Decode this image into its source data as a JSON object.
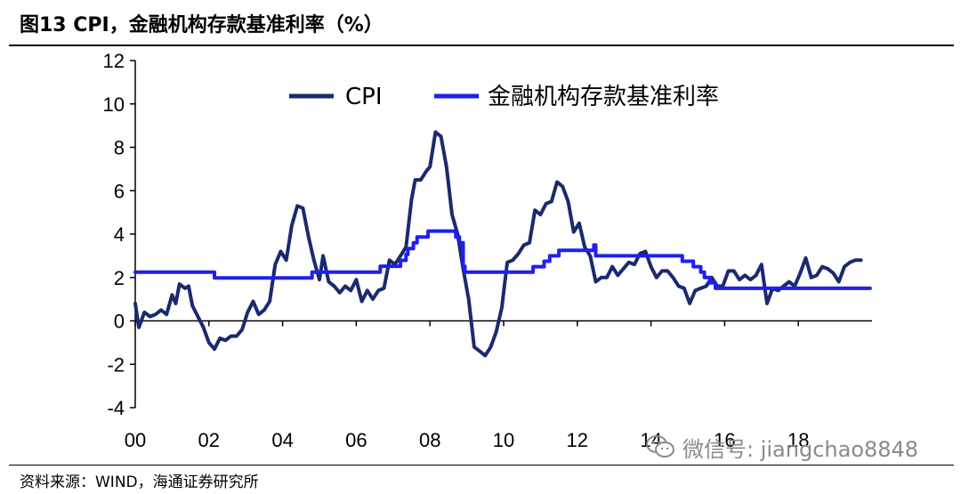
{
  "header": {
    "title": "图13 CPI，金融机构存款基准利率（%）"
  },
  "footer": {
    "source": "资料来源：WIND，海通证券研究所"
  },
  "watermark": {
    "text": "微信号: jiangchao8848",
    "icon": "wechat-icon"
  },
  "colors": {
    "cpi": "#1a2a6e",
    "rate": "#1f1fef",
    "axis": "#000000"
  },
  "chart_data": {
    "type": "line",
    "title": "",
    "xlabel": "",
    "ylabel": "",
    "xlim": [
      2000,
      2020
    ],
    "ylim": [
      -4,
      12
    ],
    "yticks": [
      -4,
      -2,
      0,
      2,
      4,
      6,
      8,
      10,
      12
    ],
    "ytick_labels": [
      "-4",
      "-2",
      "0",
      "2",
      "4",
      "6",
      "8",
      "10",
      "12"
    ],
    "xticks": [
      2000,
      2002,
      2004,
      2006,
      2008,
      2010,
      2012,
      2014,
      2016,
      2018
    ],
    "xtick_labels": [
      "00",
      "02",
      "04",
      "06",
      "08",
      "10",
      "12",
      "14",
      "16",
      "18"
    ],
    "legend_position": "top",
    "series": [
      {
        "name": "CPI",
        "x": [
          2000.0,
          2000.1,
          2000.25,
          2000.4,
          2000.55,
          2000.7,
          2000.85,
          2001.0,
          2001.1,
          2001.2,
          2001.35,
          2001.45,
          2001.55,
          2001.7,
          2001.85,
          2002.0,
          2002.15,
          2002.3,
          2002.45,
          2002.6,
          2002.75,
          2002.9,
          2003.05,
          2003.2,
          2003.35,
          2003.5,
          2003.65,
          2003.8,
          2003.95,
          2004.1,
          2004.25,
          2004.4,
          2004.55,
          2004.7,
          2004.85,
          2005.0,
          2005.1,
          2005.25,
          2005.4,
          2005.55,
          2005.7,
          2005.85,
          2006.0,
          2006.15,
          2006.3,
          2006.45,
          2006.6,
          2006.75,
          2006.9,
          2007.05,
          2007.2,
          2007.35,
          2007.5,
          2007.6,
          2007.75,
          2007.9,
          2008.0,
          2008.15,
          2008.3,
          2008.45,
          2008.6,
          2008.75,
          2008.9,
          2009.05,
          2009.2,
          2009.35,
          2009.5,
          2009.65,
          2009.8,
          2009.95,
          2010.1,
          2010.25,
          2010.4,
          2010.55,
          2010.7,
          2010.85,
          2011.0,
          2011.15,
          2011.3,
          2011.45,
          2011.6,
          2011.75,
          2011.9,
          2012.05,
          2012.2,
          2012.35,
          2012.5,
          2012.65,
          2012.8,
          2012.95,
          2013.1,
          2013.25,
          2013.4,
          2013.55,
          2013.7,
          2013.85,
          2014.0,
          2014.15,
          2014.3,
          2014.45,
          2014.6,
          2014.75,
          2014.9,
          2015.05,
          2015.2,
          2015.35,
          2015.5,
          2015.65,
          2015.8,
          2015.95,
          2016.1,
          2016.25,
          2016.4,
          2016.55,
          2016.7,
          2016.85,
          2017.0,
          2017.15,
          2017.3,
          2017.45,
          2017.6,
          2017.75,
          2017.9,
          2018.05,
          2018.2,
          2018.35,
          2018.5,
          2018.65,
          2018.8,
          2018.95,
          2019.1,
          2019.25,
          2019.4,
          2019.55,
          2019.7
        ],
        "values": [
          0.8,
          -0.3,
          0.4,
          0.2,
          0.3,
          0.5,
          0.3,
          1.2,
          0.8,
          1.7,
          1.5,
          1.6,
          0.7,
          0.2,
          -0.3,
          -1.0,
          -1.3,
          -0.8,
          -0.9,
          -0.7,
          -0.7,
          -0.4,
          0.4,
          0.9,
          0.3,
          0.5,
          0.9,
          2.6,
          3.2,
          2.8,
          4.4,
          5.3,
          5.2,
          3.9,
          2.8,
          1.9,
          3.0,
          1.8,
          1.6,
          1.3,
          1.6,
          1.4,
          1.9,
          0.9,
          1.4,
          1.0,
          1.4,
          1.5,
          2.8,
          2.6,
          3.0,
          3.4,
          5.6,
          6.5,
          6.5,
          6.9,
          7.1,
          8.7,
          8.5,
          7.1,
          4.9,
          4.0,
          2.4,
          1.0,
          -1.2,
          -1.4,
          -1.6,
          -1.2,
          -0.5,
          0.6,
          2.7,
          2.8,
          3.1,
          3.5,
          3.6,
          5.1,
          4.9,
          5.4,
          5.5,
          6.4,
          6.2,
          5.5,
          4.1,
          4.5,
          3.4,
          3.0,
          1.8,
          2.0,
          2.0,
          2.5,
          2.1,
          2.4,
          2.7,
          2.6,
          3.1,
          3.2,
          2.5,
          2.0,
          2.3,
          2.3,
          2.0,
          1.6,
          1.5,
          0.8,
          1.4,
          1.5,
          1.6,
          2.0,
          1.6,
          1.6,
          2.3,
          2.3,
          1.9,
          2.1,
          1.9,
          2.1,
          2.6,
          0.8,
          1.5,
          1.4,
          1.6,
          1.8,
          1.6,
          2.2,
          2.9,
          2.0,
          2.1,
          2.5,
          2.4,
          2.2,
          1.8,
          2.5,
          2.7,
          2.8,
          2.8
        ]
      },
      {
        "name": "金融机构存款基准利率",
        "x": [
          2000.0,
          2002.15,
          2002.15,
          2004.8,
          2004.8,
          2006.65,
          2006.65,
          2007.2,
          2007.2,
          2007.35,
          2007.35,
          2007.4,
          2007.4,
          2007.55,
          2007.55,
          2007.65,
          2007.65,
          2007.95,
          2007.95,
          2008.7,
          2008.7,
          2008.8,
          2008.8,
          2008.9,
          2008.9,
          2008.95,
          2008.95,
          2010.8,
          2010.8,
          2011.1,
          2011.1,
          2011.25,
          2011.25,
          2011.5,
          2011.5,
          2012.45,
          2012.45,
          2012.5,
          2012.5,
          2014.85,
          2014.85,
          2015.15,
          2015.15,
          2015.35,
          2015.35,
          2015.45,
          2015.45,
          2015.6,
          2015.6,
          2015.75,
          2015.75,
          2015.85,
          2015.85,
          2019.95
        ],
        "values": [
          2.25,
          2.25,
          1.98,
          1.98,
          2.25,
          2.25,
          2.52,
          2.52,
          2.79,
          2.79,
          3.06,
          3.06,
          3.33,
          3.33,
          3.6,
          3.6,
          3.87,
          3.87,
          4.14,
          4.14,
          3.87,
          3.87,
          3.6,
          3.6,
          2.52,
          2.52,
          2.25,
          2.25,
          2.5,
          2.5,
          2.75,
          2.75,
          3.0,
          3.0,
          3.25,
          3.25,
          3.5,
          3.5,
          3.0,
          3.0,
          2.75,
          2.75,
          2.5,
          2.5,
          2.25,
          2.25,
          2.0,
          2.0,
          1.75,
          1.75,
          1.5,
          1.5,
          1.5,
          1.5
        ]
      }
    ]
  }
}
